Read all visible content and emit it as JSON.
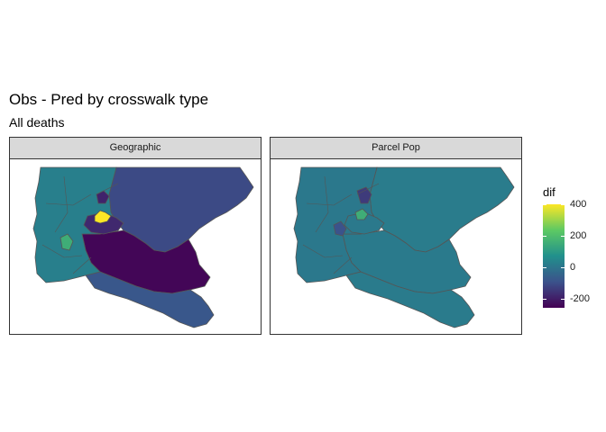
{
  "chart_data": {
    "type": "choropleth",
    "title": "Obs - Pred by crosswalk type",
    "subtitle": "All deaths",
    "facets": [
      "Geographic",
      "Parcel Pop"
    ],
    "legend": {
      "title": "dif",
      "position": "right",
      "ticks": [
        "400",
        "200",
        "0",
        "-200"
      ],
      "range": [
        -270,
        400
      ],
      "colors": [
        "#440154",
        "#3b528b",
        "#21908c",
        "#5dc963",
        "#fde725"
      ]
    },
    "panels": [
      {
        "facet": "Geographic",
        "regions": [
          {
            "id": "east",
            "dif": -120
          },
          {
            "id": "southeast",
            "dif": -260
          },
          {
            "id": "south",
            "dif": -90
          },
          {
            "id": "west",
            "dif": 20
          },
          {
            "id": "central",
            "dif": -190
          },
          {
            "id": "center-hot",
            "dif": 400
          },
          {
            "id": "center-cool",
            "dif": -200
          },
          {
            "id": "west-small",
            "dif": 150
          }
        ]
      },
      {
        "facet": "Parcel Pop",
        "regions": [
          {
            "id": "east",
            "dif": 10
          },
          {
            "id": "southeast",
            "dif": 5
          },
          {
            "id": "south",
            "dif": 8
          },
          {
            "id": "west",
            "dif": 0
          },
          {
            "id": "central",
            "dif": 2
          },
          {
            "id": "center-cool",
            "dif": -150
          },
          {
            "id": "west-small",
            "dif": -100
          },
          {
            "id": "center-warm",
            "dif": 150
          }
        ]
      }
    ]
  }
}
